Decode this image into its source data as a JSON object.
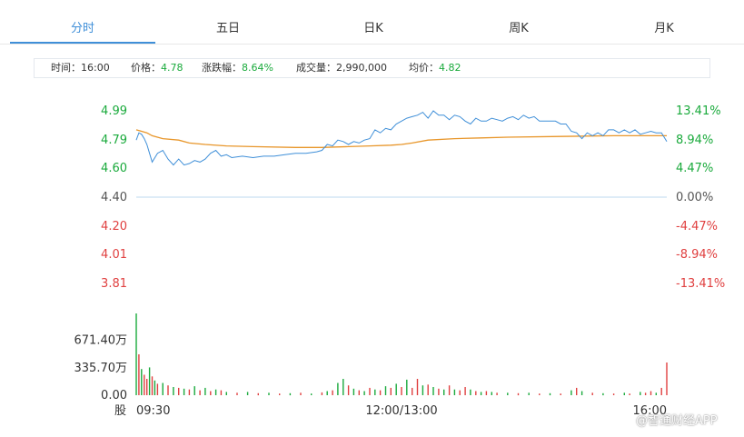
{
  "tabs": [
    {
      "label": "分时",
      "active": true
    },
    {
      "label": "五日",
      "active": false
    },
    {
      "label": "日K",
      "active": false
    },
    {
      "label": "周K",
      "active": false
    },
    {
      "label": "月K",
      "active": false
    }
  ],
  "info": {
    "time": {
      "label": "时间：",
      "value": "16:00"
    },
    "price": {
      "label": "价格：",
      "value": "4.78"
    },
    "change": {
      "label": "涨跌幅：",
      "value": "8.64%"
    },
    "volume": {
      "label": "成交量：",
      "value": "2,990,000"
    },
    "avg": {
      "label": "均价：",
      "value": "4.82"
    }
  },
  "colors": {
    "up": "#e04040",
    "down": "#1aaa3c",
    "price_line": "#3f8fd8",
    "avg_line": "#e8962a",
    "baseline": "#bcd8ef"
  },
  "watermark": "@智通财经APP",
  "chart_data": {
    "type": "line",
    "price_axis": {
      "min": 3.81,
      "max": 4.99,
      "baseline": 4.4,
      "ticks": [
        "4.99",
        "4.79",
        "4.60",
        "4.40",
        "4.20",
        "4.01",
        "3.81"
      ],
      "tick_values": [
        4.99,
        4.79,
        4.6,
        4.4,
        4.2,
        4.01,
        3.81
      ],
      "pct_ticks": [
        "13.41%",
        "8.94%",
        "4.47%",
        "0.00%",
        "-4.47%",
        "-8.94%",
        "-13.41%"
      ]
    },
    "x_axis": {
      "labels": [
        "09:30",
        "12:00/13:00",
        "16:00"
      ],
      "label_pos": [
        0,
        0.5,
        1
      ]
    },
    "price_series": [
      [
        0,
        4.79
      ],
      [
        0.005,
        4.84
      ],
      [
        0.01,
        4.83
      ],
      [
        0.015,
        4.8
      ],
      [
        0.02,
        4.76
      ],
      [
        0.025,
        4.7
      ],
      [
        0.03,
        4.64
      ],
      [
        0.04,
        4.7
      ],
      [
        0.05,
        4.72
      ],
      [
        0.06,
        4.66
      ],
      [
        0.07,
        4.62
      ],
      [
        0.08,
        4.66
      ],
      [
        0.09,
        4.62
      ],
      [
        0.1,
        4.63
      ],
      [
        0.11,
        4.65
      ],
      [
        0.12,
        4.64
      ],
      [
        0.13,
        4.66
      ],
      [
        0.14,
        4.7
      ],
      [
        0.15,
        4.72
      ],
      [
        0.16,
        4.68
      ],
      [
        0.17,
        4.69
      ],
      [
        0.18,
        4.67
      ],
      [
        0.2,
        4.68
      ],
      [
        0.22,
        4.67
      ],
      [
        0.24,
        4.68
      ],
      [
        0.26,
        4.68
      ],
      [
        0.28,
        4.69
      ],
      [
        0.3,
        4.7
      ],
      [
        0.32,
        4.7
      ],
      [
        0.34,
        4.71
      ],
      [
        0.35,
        4.72
      ],
      [
        0.36,
        4.76
      ],
      [
        0.37,
        4.75
      ],
      [
        0.38,
        4.79
      ],
      [
        0.39,
        4.78
      ],
      [
        0.4,
        4.76
      ],
      [
        0.41,
        4.78
      ],
      [
        0.42,
        4.77
      ],
      [
        0.43,
        4.79
      ],
      [
        0.44,
        4.8
      ],
      [
        0.45,
        4.86
      ],
      [
        0.46,
        4.84
      ],
      [
        0.47,
        4.87
      ],
      [
        0.48,
        4.86
      ],
      [
        0.49,
        4.9
      ],
      [
        0.5,
        4.92
      ],
      [
        0.51,
        4.94
      ],
      [
        0.52,
        4.95
      ],
      [
        0.53,
        4.96
      ],
      [
        0.54,
        4.98
      ],
      [
        0.55,
        4.94
      ],
      [
        0.56,
        4.99
      ],
      [
        0.57,
        4.96
      ],
      [
        0.58,
        4.96
      ],
      [
        0.59,
        4.93
      ],
      [
        0.6,
        4.96
      ],
      [
        0.61,
        4.95
      ],
      [
        0.62,
        4.92
      ],
      [
        0.63,
        4.9
      ],
      [
        0.64,
        4.94
      ],
      [
        0.65,
        4.92
      ],
      [
        0.66,
        4.92
      ],
      [
        0.67,
        4.94
      ],
      [
        0.68,
        4.93
      ],
      [
        0.69,
        4.92
      ],
      [
        0.7,
        4.94
      ],
      [
        0.71,
        4.95
      ],
      [
        0.72,
        4.93
      ],
      [
        0.73,
        4.96
      ],
      [
        0.74,
        4.94
      ],
      [
        0.75,
        4.95
      ],
      [
        0.76,
        4.92
      ],
      [
        0.77,
        4.92
      ],
      [
        0.78,
        4.92
      ],
      [
        0.79,
        4.92
      ],
      [
        0.8,
        4.9
      ],
      [
        0.81,
        4.9
      ],
      [
        0.82,
        4.85
      ],
      [
        0.83,
        4.84
      ],
      [
        0.84,
        4.8
      ],
      [
        0.85,
        4.84
      ],
      [
        0.86,
        4.82
      ],
      [
        0.87,
        4.84
      ],
      [
        0.88,
        4.82
      ],
      [
        0.89,
        4.86
      ],
      [
        0.9,
        4.86
      ],
      [
        0.91,
        4.84
      ],
      [
        0.92,
        4.86
      ],
      [
        0.93,
        4.84
      ],
      [
        0.94,
        4.86
      ],
      [
        0.95,
        4.83
      ],
      [
        0.96,
        4.84
      ],
      [
        0.97,
        4.85
      ],
      [
        0.98,
        4.84
      ],
      [
        0.99,
        4.84
      ],
      [
        1.0,
        4.78
      ]
    ],
    "avg_series": [
      [
        0,
        4.86
      ],
      [
        0.01,
        4.85
      ],
      [
        0.02,
        4.84
      ],
      [
        0.03,
        4.82
      ],
      [
        0.05,
        4.8
      ],
      [
        0.08,
        4.79
      ],
      [
        0.1,
        4.77
      ],
      [
        0.13,
        4.76
      ],
      [
        0.17,
        4.75
      ],
      [
        0.22,
        4.745
      ],
      [
        0.3,
        4.74
      ],
      [
        0.35,
        4.74
      ],
      [
        0.4,
        4.745
      ],
      [
        0.44,
        4.75
      ],
      [
        0.48,
        4.755
      ],
      [
        0.5,
        4.76
      ],
      [
        0.52,
        4.77
      ],
      [
        0.55,
        4.79
      ],
      [
        0.6,
        4.8
      ],
      [
        0.65,
        4.805
      ],
      [
        0.7,
        4.81
      ],
      [
        0.8,
        4.815
      ],
      [
        0.9,
        4.82
      ],
      [
        0.95,
        4.82
      ],
      [
        1.0,
        4.82
      ]
    ],
    "volume_axis": {
      "max": 1000,
      "unit": "万",
      "ticks": [
        "671.40万",
        "335.70万",
        "0.00"
      ],
      "tick_values": [
        671.4,
        335.7,
        0
      ],
      "label": "股"
    },
    "volume_bars": [
      {
        "x": 0.0,
        "v": 1000,
        "c": "down"
      },
      {
        "x": 0.005,
        "v": 500,
        "c": "up"
      },
      {
        "x": 0.01,
        "v": 320,
        "c": "down"
      },
      {
        "x": 0.015,
        "v": 250,
        "c": "up"
      },
      {
        "x": 0.02,
        "v": 200,
        "c": "up"
      },
      {
        "x": 0.025,
        "v": 340,
        "c": "down"
      },
      {
        "x": 0.03,
        "v": 230,
        "c": "up"
      },
      {
        "x": 0.035,
        "v": 180,
        "c": "down"
      },
      {
        "x": 0.04,
        "v": 140,
        "c": "up"
      },
      {
        "x": 0.05,
        "v": 150,
        "c": "down"
      },
      {
        "x": 0.06,
        "v": 120,
        "c": "up"
      },
      {
        "x": 0.07,
        "v": 100,
        "c": "down"
      },
      {
        "x": 0.08,
        "v": 90,
        "c": "up"
      },
      {
        "x": 0.09,
        "v": 80,
        "c": "down"
      },
      {
        "x": 0.1,
        "v": 70,
        "c": "up"
      },
      {
        "x": 0.11,
        "v": 110,
        "c": "down"
      },
      {
        "x": 0.12,
        "v": 60,
        "c": "up"
      },
      {
        "x": 0.13,
        "v": 90,
        "c": "down"
      },
      {
        "x": 0.14,
        "v": 50,
        "c": "up"
      },
      {
        "x": 0.15,
        "v": 70,
        "c": "down"
      },
      {
        "x": 0.16,
        "v": 60,
        "c": "up"
      },
      {
        "x": 0.17,
        "v": 40,
        "c": "down"
      },
      {
        "x": 0.19,
        "v": 30,
        "c": "up"
      },
      {
        "x": 0.21,
        "v": 40,
        "c": "down"
      },
      {
        "x": 0.23,
        "v": 25,
        "c": "up"
      },
      {
        "x": 0.25,
        "v": 30,
        "c": "down"
      },
      {
        "x": 0.27,
        "v": 20,
        "c": "up"
      },
      {
        "x": 0.29,
        "v": 25,
        "c": "down"
      },
      {
        "x": 0.31,
        "v": 30,
        "c": "up"
      },
      {
        "x": 0.33,
        "v": 20,
        "c": "down"
      },
      {
        "x": 0.35,
        "v": 35,
        "c": "up"
      },
      {
        "x": 0.36,
        "v": 50,
        "c": "down"
      },
      {
        "x": 0.37,
        "v": 60,
        "c": "up"
      },
      {
        "x": 0.38,
        "v": 150,
        "c": "down"
      },
      {
        "x": 0.39,
        "v": 200,
        "c": "down"
      },
      {
        "x": 0.4,
        "v": 120,
        "c": "up"
      },
      {
        "x": 0.41,
        "v": 80,
        "c": "down"
      },
      {
        "x": 0.42,
        "v": 60,
        "c": "up"
      },
      {
        "x": 0.43,
        "v": 50,
        "c": "down"
      },
      {
        "x": 0.44,
        "v": 90,
        "c": "up"
      },
      {
        "x": 0.45,
        "v": 70,
        "c": "down"
      },
      {
        "x": 0.46,
        "v": 60,
        "c": "up"
      },
      {
        "x": 0.47,
        "v": 110,
        "c": "down"
      },
      {
        "x": 0.48,
        "v": 90,
        "c": "up"
      },
      {
        "x": 0.49,
        "v": 140,
        "c": "down"
      },
      {
        "x": 0.5,
        "v": 100,
        "c": "up"
      },
      {
        "x": 0.51,
        "v": 190,
        "c": "down"
      },
      {
        "x": 0.52,
        "v": 90,
        "c": "up"
      },
      {
        "x": 0.53,
        "v": 200,
        "c": "up"
      },
      {
        "x": 0.54,
        "v": 120,
        "c": "down"
      },
      {
        "x": 0.55,
        "v": 130,
        "c": "up"
      },
      {
        "x": 0.56,
        "v": 100,
        "c": "down"
      },
      {
        "x": 0.57,
        "v": 80,
        "c": "up"
      },
      {
        "x": 0.58,
        "v": 70,
        "c": "down"
      },
      {
        "x": 0.59,
        "v": 120,
        "c": "up"
      },
      {
        "x": 0.6,
        "v": 70,
        "c": "down"
      },
      {
        "x": 0.61,
        "v": 60,
        "c": "up"
      },
      {
        "x": 0.62,
        "v": 100,
        "c": "up"
      },
      {
        "x": 0.63,
        "v": 70,
        "c": "down"
      },
      {
        "x": 0.64,
        "v": 50,
        "c": "up"
      },
      {
        "x": 0.65,
        "v": 40,
        "c": "down"
      },
      {
        "x": 0.66,
        "v": 50,
        "c": "up"
      },
      {
        "x": 0.67,
        "v": 40,
        "c": "down"
      },
      {
        "x": 0.68,
        "v": 30,
        "c": "up"
      },
      {
        "x": 0.7,
        "v": 30,
        "c": "down"
      },
      {
        "x": 0.72,
        "v": 25,
        "c": "up"
      },
      {
        "x": 0.74,
        "v": 30,
        "c": "down"
      },
      {
        "x": 0.76,
        "v": 20,
        "c": "up"
      },
      {
        "x": 0.78,
        "v": 25,
        "c": "down"
      },
      {
        "x": 0.8,
        "v": 20,
        "c": "up"
      },
      {
        "x": 0.82,
        "v": 60,
        "c": "down"
      },
      {
        "x": 0.83,
        "v": 90,
        "c": "up"
      },
      {
        "x": 0.84,
        "v": 50,
        "c": "down"
      },
      {
        "x": 0.86,
        "v": 30,
        "c": "up"
      },
      {
        "x": 0.88,
        "v": 25,
        "c": "down"
      },
      {
        "x": 0.9,
        "v": 20,
        "c": "up"
      },
      {
        "x": 0.92,
        "v": 30,
        "c": "down"
      },
      {
        "x": 0.93,
        "v": 20,
        "c": "up"
      },
      {
        "x": 0.95,
        "v": 40,
        "c": "down"
      },
      {
        "x": 0.96,
        "v": 30,
        "c": "up"
      },
      {
        "x": 0.97,
        "v": 50,
        "c": "up"
      },
      {
        "x": 0.98,
        "v": 30,
        "c": "down"
      },
      {
        "x": 0.99,
        "v": 90,
        "c": "up"
      },
      {
        "x": 1.0,
        "v": 400,
        "c": "up"
      }
    ]
  }
}
